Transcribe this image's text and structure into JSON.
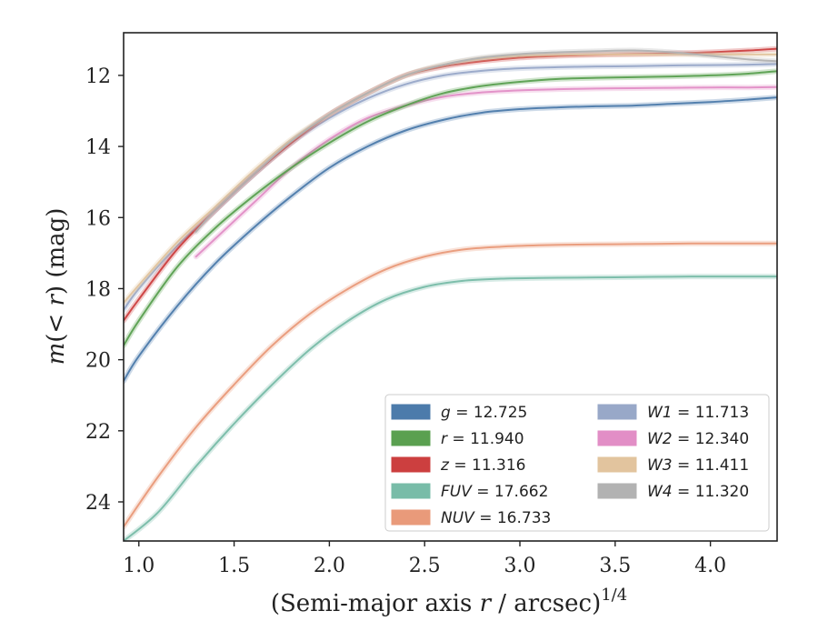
{
  "chart_data": {
    "type": "line",
    "xlabel_main": "(Semi-major axis ",
    "xlabel_var": "r",
    "xlabel_rest": " / arcsec)",
    "xlabel_sup": "1/4",
    "ylabel_pre": "m",
    "ylabel_mid": "(< ",
    "ylabel_var": "r",
    "ylabel_post": ") (mag)",
    "xlim": [
      0.92,
      4.35
    ],
    "ylim": [
      25.1,
      10.8
    ],
    "y_inverted": true,
    "grid": false,
    "legend_position": "lower-right",
    "xticks": [
      1.0,
      1.5,
      2.0,
      2.5,
      3.0,
      3.5,
      4.0
    ],
    "xtick_labels": [
      "1.0",
      "1.5",
      "2.0",
      "2.5",
      "3.0",
      "3.5",
      "4.0"
    ],
    "yticks": [
      12,
      14,
      16,
      18,
      20,
      22,
      24
    ],
    "ytick_labels": [
      "12",
      "14",
      "16",
      "18",
      "20",
      "22",
      "24"
    ],
    "series": [
      {
        "name": "g",
        "value": "12.725",
        "color": "#4c7bab",
        "x": [
          0.92,
          1.0,
          1.2,
          1.4,
          1.6,
          1.8,
          2.0,
          2.2,
          2.4,
          2.6,
          2.8,
          3.0,
          3.2,
          3.4,
          3.6,
          3.8,
          4.0,
          4.2,
          4.35
        ],
        "y": [
          20.6,
          19.9,
          18.5,
          17.3,
          16.3,
          15.4,
          14.6,
          14.0,
          13.55,
          13.25,
          13.05,
          12.95,
          12.9,
          12.87,
          12.85,
          12.8,
          12.75,
          12.68,
          12.62
        ]
      },
      {
        "name": "r",
        "value": "11.940",
        "color": "#5aa050",
        "x": [
          0.92,
          1.0,
          1.2,
          1.4,
          1.6,
          1.8,
          2.0,
          2.2,
          2.4,
          2.6,
          2.8,
          3.0,
          3.2,
          3.4,
          3.6,
          3.8,
          4.0,
          4.2,
          4.35
        ],
        "y": [
          19.6,
          18.9,
          17.4,
          16.3,
          15.4,
          14.6,
          13.9,
          13.3,
          12.85,
          12.5,
          12.3,
          12.18,
          12.1,
          12.07,
          12.05,
          12.03,
          12.0,
          11.95,
          11.88
        ]
      },
      {
        "name": "z",
        "value": "11.316",
        "color": "#cc3f3f",
        "x": [
          0.92,
          1.0,
          1.2,
          1.4,
          1.6,
          1.8,
          2.0,
          2.2,
          2.4,
          2.6,
          2.8,
          3.0,
          3.2,
          3.4,
          3.6,
          3.8,
          4.0,
          4.2,
          4.35
        ],
        "y": [
          18.9,
          18.3,
          16.9,
          15.8,
          14.8,
          13.9,
          13.1,
          12.5,
          12.0,
          11.75,
          11.6,
          11.5,
          11.45,
          11.42,
          11.4,
          11.38,
          11.35,
          11.3,
          11.25
        ]
      },
      {
        "name": "FUV",
        "value": "17.662",
        "color": "#78bca8",
        "x": [
          0.92,
          1.1,
          1.3,
          1.5,
          1.7,
          1.9,
          2.1,
          2.3,
          2.5,
          2.7,
          2.9,
          3.1,
          3.3,
          3.5,
          3.7,
          3.9,
          4.1,
          4.35
        ],
        "y": [
          25.1,
          24.3,
          23.0,
          21.8,
          20.7,
          19.7,
          18.9,
          18.3,
          17.95,
          17.78,
          17.72,
          17.7,
          17.69,
          17.68,
          17.67,
          17.66,
          17.66,
          17.66
        ]
      },
      {
        "name": "NUV",
        "value": "16.733",
        "color": "#e99a7a",
        "x": [
          0.92,
          1.1,
          1.3,
          1.5,
          1.7,
          1.9,
          2.1,
          2.3,
          2.5,
          2.7,
          2.9,
          3.1,
          3.3,
          3.5,
          3.7,
          3.9,
          4.1,
          4.35
        ],
        "y": [
          24.7,
          23.3,
          21.9,
          20.7,
          19.6,
          18.7,
          18.0,
          17.45,
          17.1,
          16.9,
          16.82,
          16.78,
          16.76,
          16.75,
          16.74,
          16.73,
          16.73,
          16.73
        ]
      },
      {
        "name": "W1",
        "value": "11.713",
        "color": "#98a8c8",
        "x": [
          0.92,
          1.0,
          1.2,
          1.4,
          1.6,
          1.8,
          2.0,
          2.2,
          2.4,
          2.6,
          2.8,
          3.0,
          3.2,
          3.4,
          3.6,
          3.8,
          4.0,
          4.2,
          4.35
        ],
        "y": [
          18.6,
          18.0,
          16.8,
          15.8,
          14.8,
          13.9,
          13.2,
          12.65,
          12.25,
          12.0,
          11.87,
          11.8,
          11.77,
          11.75,
          11.74,
          11.72,
          11.71,
          11.7,
          11.68
        ]
      },
      {
        "name": "W2",
        "value": "12.340",
        "color": "#e28ec6",
        "x": [
          1.3,
          1.4,
          1.6,
          1.8,
          2.0,
          2.2,
          2.4,
          2.6,
          2.8,
          3.0,
          3.2,
          3.4,
          3.6,
          3.8,
          4.0,
          4.2,
          4.35
        ],
        "y": [
          17.1,
          16.6,
          15.6,
          14.6,
          13.8,
          13.2,
          12.85,
          12.6,
          12.48,
          12.42,
          12.39,
          12.37,
          12.36,
          12.35,
          12.34,
          12.34,
          12.33
        ]
      },
      {
        "name": "W3",
        "value": "11.411",
        "color": "#e2c49e",
        "x": [
          0.92,
          1.0,
          1.2,
          1.4,
          1.6,
          1.8,
          2.0,
          2.2,
          2.4,
          2.6,
          2.8,
          3.0,
          3.2,
          3.4,
          3.6,
          3.8,
          4.0,
          4.2,
          4.35
        ],
        "y": [
          18.4,
          17.9,
          16.7,
          15.7,
          14.7,
          13.8,
          13.1,
          12.5,
          12.0,
          11.7,
          11.53,
          11.45,
          11.42,
          11.41,
          11.41,
          11.41,
          11.41,
          11.41,
          11.41
        ]
      },
      {
        "name": "W4",
        "value": "11.320",
        "color": "#b2b2b2",
        "x": [
          1.3,
          1.4,
          1.6,
          1.8,
          2.0,
          2.2,
          2.4,
          2.6,
          2.8,
          3.0,
          3.2,
          3.4,
          3.6,
          3.8,
          4.0,
          4.2,
          4.35
        ],
        "y": [
          16.4,
          15.8,
          14.8,
          13.85,
          13.1,
          12.5,
          12.0,
          11.7,
          11.5,
          11.4,
          11.35,
          11.32,
          11.3,
          11.35,
          11.45,
          11.55,
          11.6
        ]
      }
    ]
  }
}
